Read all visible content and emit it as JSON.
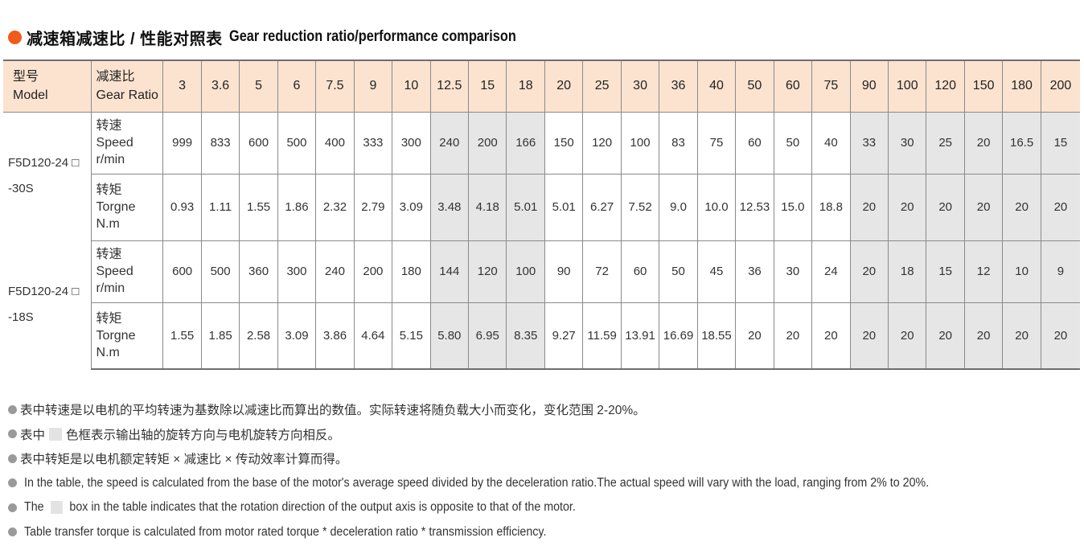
{
  "title": {
    "cn": "减速箱减速比 / 性能对照表",
    "en": "Gear reduction ratio/performance comparison",
    "dot_color": "#f05a1a"
  },
  "table": {
    "header": {
      "model_cn": "型号",
      "model_en": "Model",
      "ratio_cn": "减速比",
      "ratio_en": "Gear Ratio",
      "ratios": [
        "3",
        "3.6",
        "5",
        "6",
        "7.5",
        "9",
        "10",
        "12.5",
        "15",
        "18",
        "20",
        "25",
        "30",
        "36",
        "40",
        "50",
        "60",
        "75",
        "90",
        "100",
        "120",
        "150",
        "180",
        "200"
      ]
    },
    "header_bg": "#fbe3d0",
    "shade_color": "#e6e6e6",
    "speed_label": {
      "cn": "转速",
      "en": "Speed",
      "unit": "r/min"
    },
    "torque_label": {
      "cn": "转矩",
      "en": "Torgne",
      "unit": "N.m"
    },
    "groups": [
      {
        "model_line1": "F5D120-24 □",
        "model_line2": "-30S",
        "speed": [
          "999",
          "833",
          "600",
          "500",
          "400",
          "333",
          "300",
          "240",
          "200",
          "166",
          "150",
          "120",
          "100",
          "83",
          "75",
          "60",
          "50",
          "40",
          "33",
          "30",
          "25",
          "20",
          "16.5",
          "15"
        ],
        "torque": [
          "0.93",
          "1.11",
          "1.55",
          "1.86",
          "2.32",
          "2.79",
          "3.09",
          "3.48",
          "4.18",
          "5.01",
          "5.01",
          "6.27",
          "7.52",
          "9.0",
          "10.0",
          "12.53",
          "15.0",
          "18.8",
          "20",
          "20",
          "20",
          "20",
          "20",
          "20"
        ]
      },
      {
        "model_line1": "F5D120-24 □",
        "model_line2": "-18S",
        "speed": [
          "600",
          "500",
          "360",
          "300",
          "240",
          "200",
          "180",
          "144",
          "120",
          "100",
          "90",
          "72",
          "60",
          "50",
          "45",
          "36",
          "30",
          "24",
          "20",
          "18",
          "15",
          "12",
          "10",
          "9"
        ],
        "torque": [
          "1.55",
          "1.85",
          "2.58",
          "3.09",
          "3.86",
          "4.64",
          "5.15",
          "5.80",
          "6.95",
          "8.35",
          "9.27",
          "11.59",
          "13.91",
          "16.69",
          "18.55",
          "20",
          "20",
          "20",
          "20",
          "20",
          "20",
          "20",
          "20",
          "20"
        ]
      }
    ]
  },
  "notes": {
    "cn1": "表中转速是以电机的平均转速为基数除以减速比而算出的数值。实际转速将随负载大小而变化，变化范围 2-20%。",
    "cn2_before": "表中",
    "cn2_after": "色框表示输出轴的旋转方向与电机旋转方向相反。",
    "cn3": "表中转矩是以电机额定转矩 × 减速比 × 传动效率计算而得。",
    "en1": "In the table, the speed is calculated from the base of the motor's average speed  divided by the deceleration ratio.The actual speed will vary with the load, ranging from 2% to 20%.",
    "en2_before": "The",
    "en2_after": "box in the table indicates that the rotation direction of the output axis is opposite to that of the motor.",
    "en3": "Table transfer torque is calculated from motor rated torque * deceleration ratio * transmission efficiency."
  }
}
